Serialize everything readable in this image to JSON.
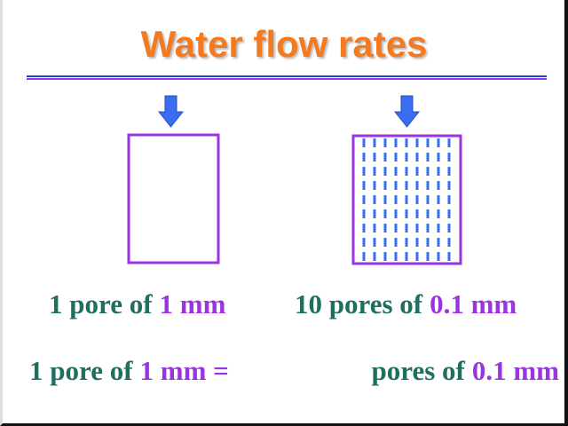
{
  "title": "Water flow rates",
  "panels": [
    {
      "caption": {
        "text": "1 pore of",
        "highlight": "1 mm"
      }
    },
    {
      "caption": {
        "text": "10 pores of",
        "highlight": "0.1 mm"
      }
    }
  ],
  "equation": {
    "left": {
      "text": "1 pore of",
      "highlight": "1 mm ="
    },
    "right": {
      "text": "pores of",
      "highlight": "0.1 mm"
    }
  }
}
